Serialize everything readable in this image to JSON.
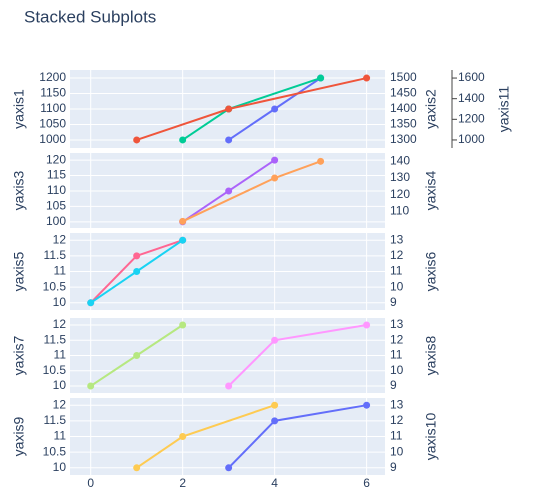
{
  "chart_data": {
    "type": "line",
    "title": "Stacked Subplots",
    "xlim": [
      -0.45,
      6.4
    ],
    "xticks": [
      0,
      2,
      4,
      6
    ],
    "grid": true,
    "subplots": [
      {
        "yaxes": [
          {
            "title": "yaxis1",
            "side": "left",
            "lim": [
              974,
              1226
            ],
            "ticks": [
              1000,
              1050,
              1100,
              1150,
              1200
            ]
          },
          {
            "title": "yaxis2",
            "side": "right",
            "lim": [
              1274,
              1526
            ],
            "ticks": [
              1300,
              1350,
              1400,
              1450,
              1500
            ]
          },
          {
            "title": "yaxis11",
            "side": "right",
            "lim": [
              922,
              1678
            ],
            "ticks": [
              1000,
              1200,
              1400,
              1600
            ]
          }
        ],
        "series": [
          {
            "color": "#636efa",
            "axis": 0,
            "x": [
              3,
              4,
              5
            ],
            "values": [
              1000,
              1100,
              1200
            ]
          },
          {
            "color": "#00cc96",
            "axis": 1,
            "x": [
              2,
              3,
              5
            ],
            "values": [
              1300,
              1400,
              1500
            ]
          },
          {
            "color": "#ef553b",
            "axis": 2,
            "x": [
              1,
              3,
              6
            ],
            "values": [
              1000,
              1300,
              1600
            ]
          }
        ]
      },
      {
        "yaxes": [
          {
            "title": "yaxis3",
            "side": "left",
            "lim": [
              98,
              122.3
            ],
            "ticks": [
              100,
              105,
              110,
              115,
              120
            ]
          },
          {
            "title": "yaxis4",
            "side": "right",
            "lim": [
              100,
              145
            ],
            "ticks": [
              110,
              120,
              130,
              140
            ]
          }
        ],
        "series": [
          {
            "color": "#ab63fa",
            "axis": 0,
            "x": [
              2,
              3,
              4
            ],
            "values": [
              100,
              110,
              120
            ]
          },
          {
            "color": "#ffa15a",
            "axis": 1,
            "x": [
              2,
              4,
              5
            ],
            "values": [
              104,
              130,
              140
            ]
          }
        ]
      },
      {
        "yaxes": [
          {
            "title": "yaxis5",
            "side": "left",
            "lim": [
              9.77,
              12.23
            ],
            "ticks": [
              10,
              10.5,
              11,
              11.5,
              12
            ]
          },
          {
            "title": "yaxis6",
            "side": "right",
            "lim": [
              8.54,
              13.46
            ],
            "ticks": [
              9,
              10,
              11,
              12,
              13
            ]
          }
        ],
        "series": [
          {
            "color": "#ff6692",
            "axis": 0,
            "x": [
              0,
              1,
              2
            ],
            "values": [
              10,
              11.5,
              12
            ]
          },
          {
            "color": "#19d3f3",
            "axis": 1,
            "x": [
              0,
              1,
              2
            ],
            "values": [
              9,
              11,
              13
            ]
          }
        ]
      },
      {
        "yaxes": [
          {
            "title": "yaxis7",
            "side": "left",
            "lim": [
              9.77,
              12.23
            ],
            "ticks": [
              10,
              10.5,
              11,
              11.5,
              12
            ]
          },
          {
            "title": "yaxis8",
            "side": "right",
            "lim": [
              8.54,
              13.46
            ],
            "ticks": [
              9,
              10,
              11,
              12,
              13
            ]
          }
        ],
        "series": [
          {
            "color": "#b6e880",
            "axis": 0,
            "x": [
              0,
              1,
              2
            ],
            "values": [
              10,
              11,
              12
            ]
          },
          {
            "color": "#ff97ff",
            "axis": 1,
            "x": [
              3,
              4,
              6
            ],
            "values": [
              9,
              12,
              13
            ]
          }
        ]
      },
      {
        "yaxes": [
          {
            "title": "yaxis9",
            "side": "left",
            "lim": [
              9.77,
              12.23
            ],
            "ticks": [
              10,
              10.5,
              11,
              11.5,
              12
            ]
          },
          {
            "title": "yaxis10",
            "side": "right",
            "lim": [
              8.54,
              13.46
            ],
            "ticks": [
              9,
              10,
              11,
              12,
              13
            ]
          }
        ],
        "series": [
          {
            "color": "#fecb52",
            "axis": 0,
            "x": [
              1,
              2,
              4
            ],
            "values": [
              10,
              11,
              12
            ]
          },
          {
            "color": "#636efa",
            "axis": 1,
            "x": [
              3,
              4,
              6
            ],
            "values": [
              9,
              12,
              13
            ]
          }
        ]
      }
    ]
  }
}
